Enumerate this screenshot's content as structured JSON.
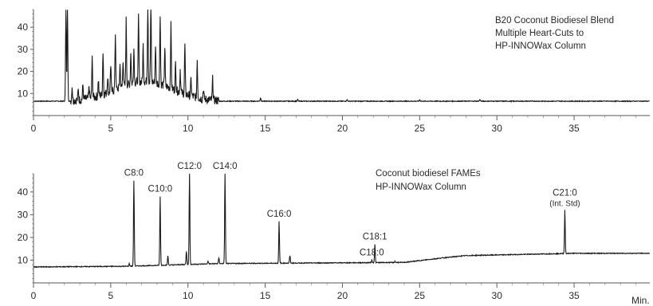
{
  "chart_data": [
    {
      "type": "line",
      "title": "",
      "annotation_lines": [
        "B20 Coconut Biodiesel Blend",
        "Multiple Heart-Cuts to",
        "HP-INNOWax Column"
      ],
      "xlabel": "",
      "ylabel": "",
      "xlim": [
        0,
        39.9
      ],
      "ylim": [
        0,
        48
      ],
      "x_ticks": [
        0,
        5,
        10,
        15,
        20,
        25,
        30,
        35
      ],
      "x_tick_labels": [
        "0",
        "5",
        "10",
        "15",
        "20",
        "25",
        "30",
        "35"
      ],
      "y_ticks": [
        10,
        20,
        30,
        40
      ],
      "y_tick_labels": [
        "10",
        "20",
        "30",
        "40"
      ],
      "grid": false,
      "legend": "none",
      "baseline": 6.5,
      "peaks": [
        {
          "x": 2.1,
          "y": 48
        },
        {
          "x": 2.2,
          "y": 48
        },
        {
          "x": 2.5,
          "y": 13
        },
        {
          "x": 2.9,
          "y": 11
        },
        {
          "x": 3.2,
          "y": 13
        },
        {
          "x": 3.6,
          "y": 12
        },
        {
          "x": 3.8,
          "y": 24
        },
        {
          "x": 4.2,
          "y": 14
        },
        {
          "x": 4.5,
          "y": 26
        },
        {
          "x": 4.8,
          "y": 14
        },
        {
          "x": 5.0,
          "y": 19
        },
        {
          "x": 5.3,
          "y": 32
        },
        {
          "x": 5.6,
          "y": 17
        },
        {
          "x": 5.8,
          "y": 19
        },
        {
          "x": 6.0,
          "y": 36
        },
        {
          "x": 6.3,
          "y": 21
        },
        {
          "x": 6.5,
          "y": 22
        },
        {
          "x": 6.8,
          "y": 36
        },
        {
          "x": 7.1,
          "y": 23
        },
        {
          "x": 7.4,
          "y": 42
        },
        {
          "x": 7.6,
          "y": 45
        },
        {
          "x": 7.9,
          "y": 24
        },
        {
          "x": 8.2,
          "y": 39
        },
        {
          "x": 8.5,
          "y": 24
        },
        {
          "x": 8.9,
          "y": 35
        },
        {
          "x": 9.2,
          "y": 19
        },
        {
          "x": 9.5,
          "y": 17
        },
        {
          "x": 9.8,
          "y": 29
        },
        {
          "x": 10.2,
          "y": 14
        },
        {
          "x": 10.6,
          "y": 24
        },
        {
          "x": 11.0,
          "y": 11
        },
        {
          "x": 11.6,
          "y": 16
        },
        {
          "x": 14.7,
          "y": 8
        },
        {
          "x": 17.1,
          "y": 7.2
        },
        {
          "x": 20.3,
          "y": 7.3
        },
        {
          "x": 25.0,
          "y": 7.2
        },
        {
          "x": 28.9,
          "y": 7.3
        }
      ]
    },
    {
      "type": "line",
      "title": "",
      "annotation_lines": [
        "Coconut biodiesel FAMEs",
        "HP-INNOWax Column"
      ],
      "xlabel": "Min.",
      "ylabel": "",
      "xlim": [
        0,
        39.9
      ],
      "ylim": [
        0,
        48
      ],
      "x_ticks": [
        0,
        5,
        10,
        15,
        20,
        25,
        30,
        35
      ],
      "x_tick_labels": [
        "0",
        "5",
        "10",
        "15",
        "20",
        "25",
        "30",
        "35"
      ],
      "y_ticks": [
        10,
        20,
        30,
        40
      ],
      "y_tick_labels": [
        "10",
        "20",
        "30",
        "40"
      ],
      "grid": false,
      "legend": "none",
      "baseline": 7,
      "baseline_steps": [
        {
          "x": 0,
          "y": 7
        },
        {
          "x": 6,
          "y": 7.3
        },
        {
          "x": 12,
          "y": 8.5
        },
        {
          "x": 24,
          "y": 9
        },
        {
          "x": 26.5,
          "y": 11
        },
        {
          "x": 28,
          "y": 12
        },
        {
          "x": 35,
          "y": 13
        },
        {
          "x": 39.9,
          "y": 13
        }
      ],
      "peaks": [
        {
          "x": 6.5,
          "y": 45,
          "label": "C8:0"
        },
        {
          "x": 8.2,
          "y": 38,
          "label": "C10:0"
        },
        {
          "x": 10.1,
          "y": 48,
          "label": "C12:0"
        },
        {
          "x": 12.4,
          "y": 48,
          "label": "C14:0"
        },
        {
          "x": 15.9,
          "y": 27,
          "label": "C16:0"
        },
        {
          "x": 21.9,
          "y": 10,
          "label": "C18:0"
        },
        {
          "x": 22.1,
          "y": 17,
          "label": "C18:1"
        },
        {
          "x": 34.4,
          "y": 32,
          "label": "C21:0",
          "sublabel": "(Int. Std)"
        },
        {
          "x": 6.2,
          "y": 8.5
        },
        {
          "x": 8.7,
          "y": 12
        },
        {
          "x": 9.9,
          "y": 14
        },
        {
          "x": 11.3,
          "y": 9.5
        },
        {
          "x": 12.0,
          "y": 11
        },
        {
          "x": 16.6,
          "y": 12
        },
        {
          "x": 20.0,
          "y": 8.8
        },
        {
          "x": 23.4,
          "y": 9.5
        },
        {
          "x": 31.5,
          "y": 12.5
        }
      ]
    }
  ]
}
